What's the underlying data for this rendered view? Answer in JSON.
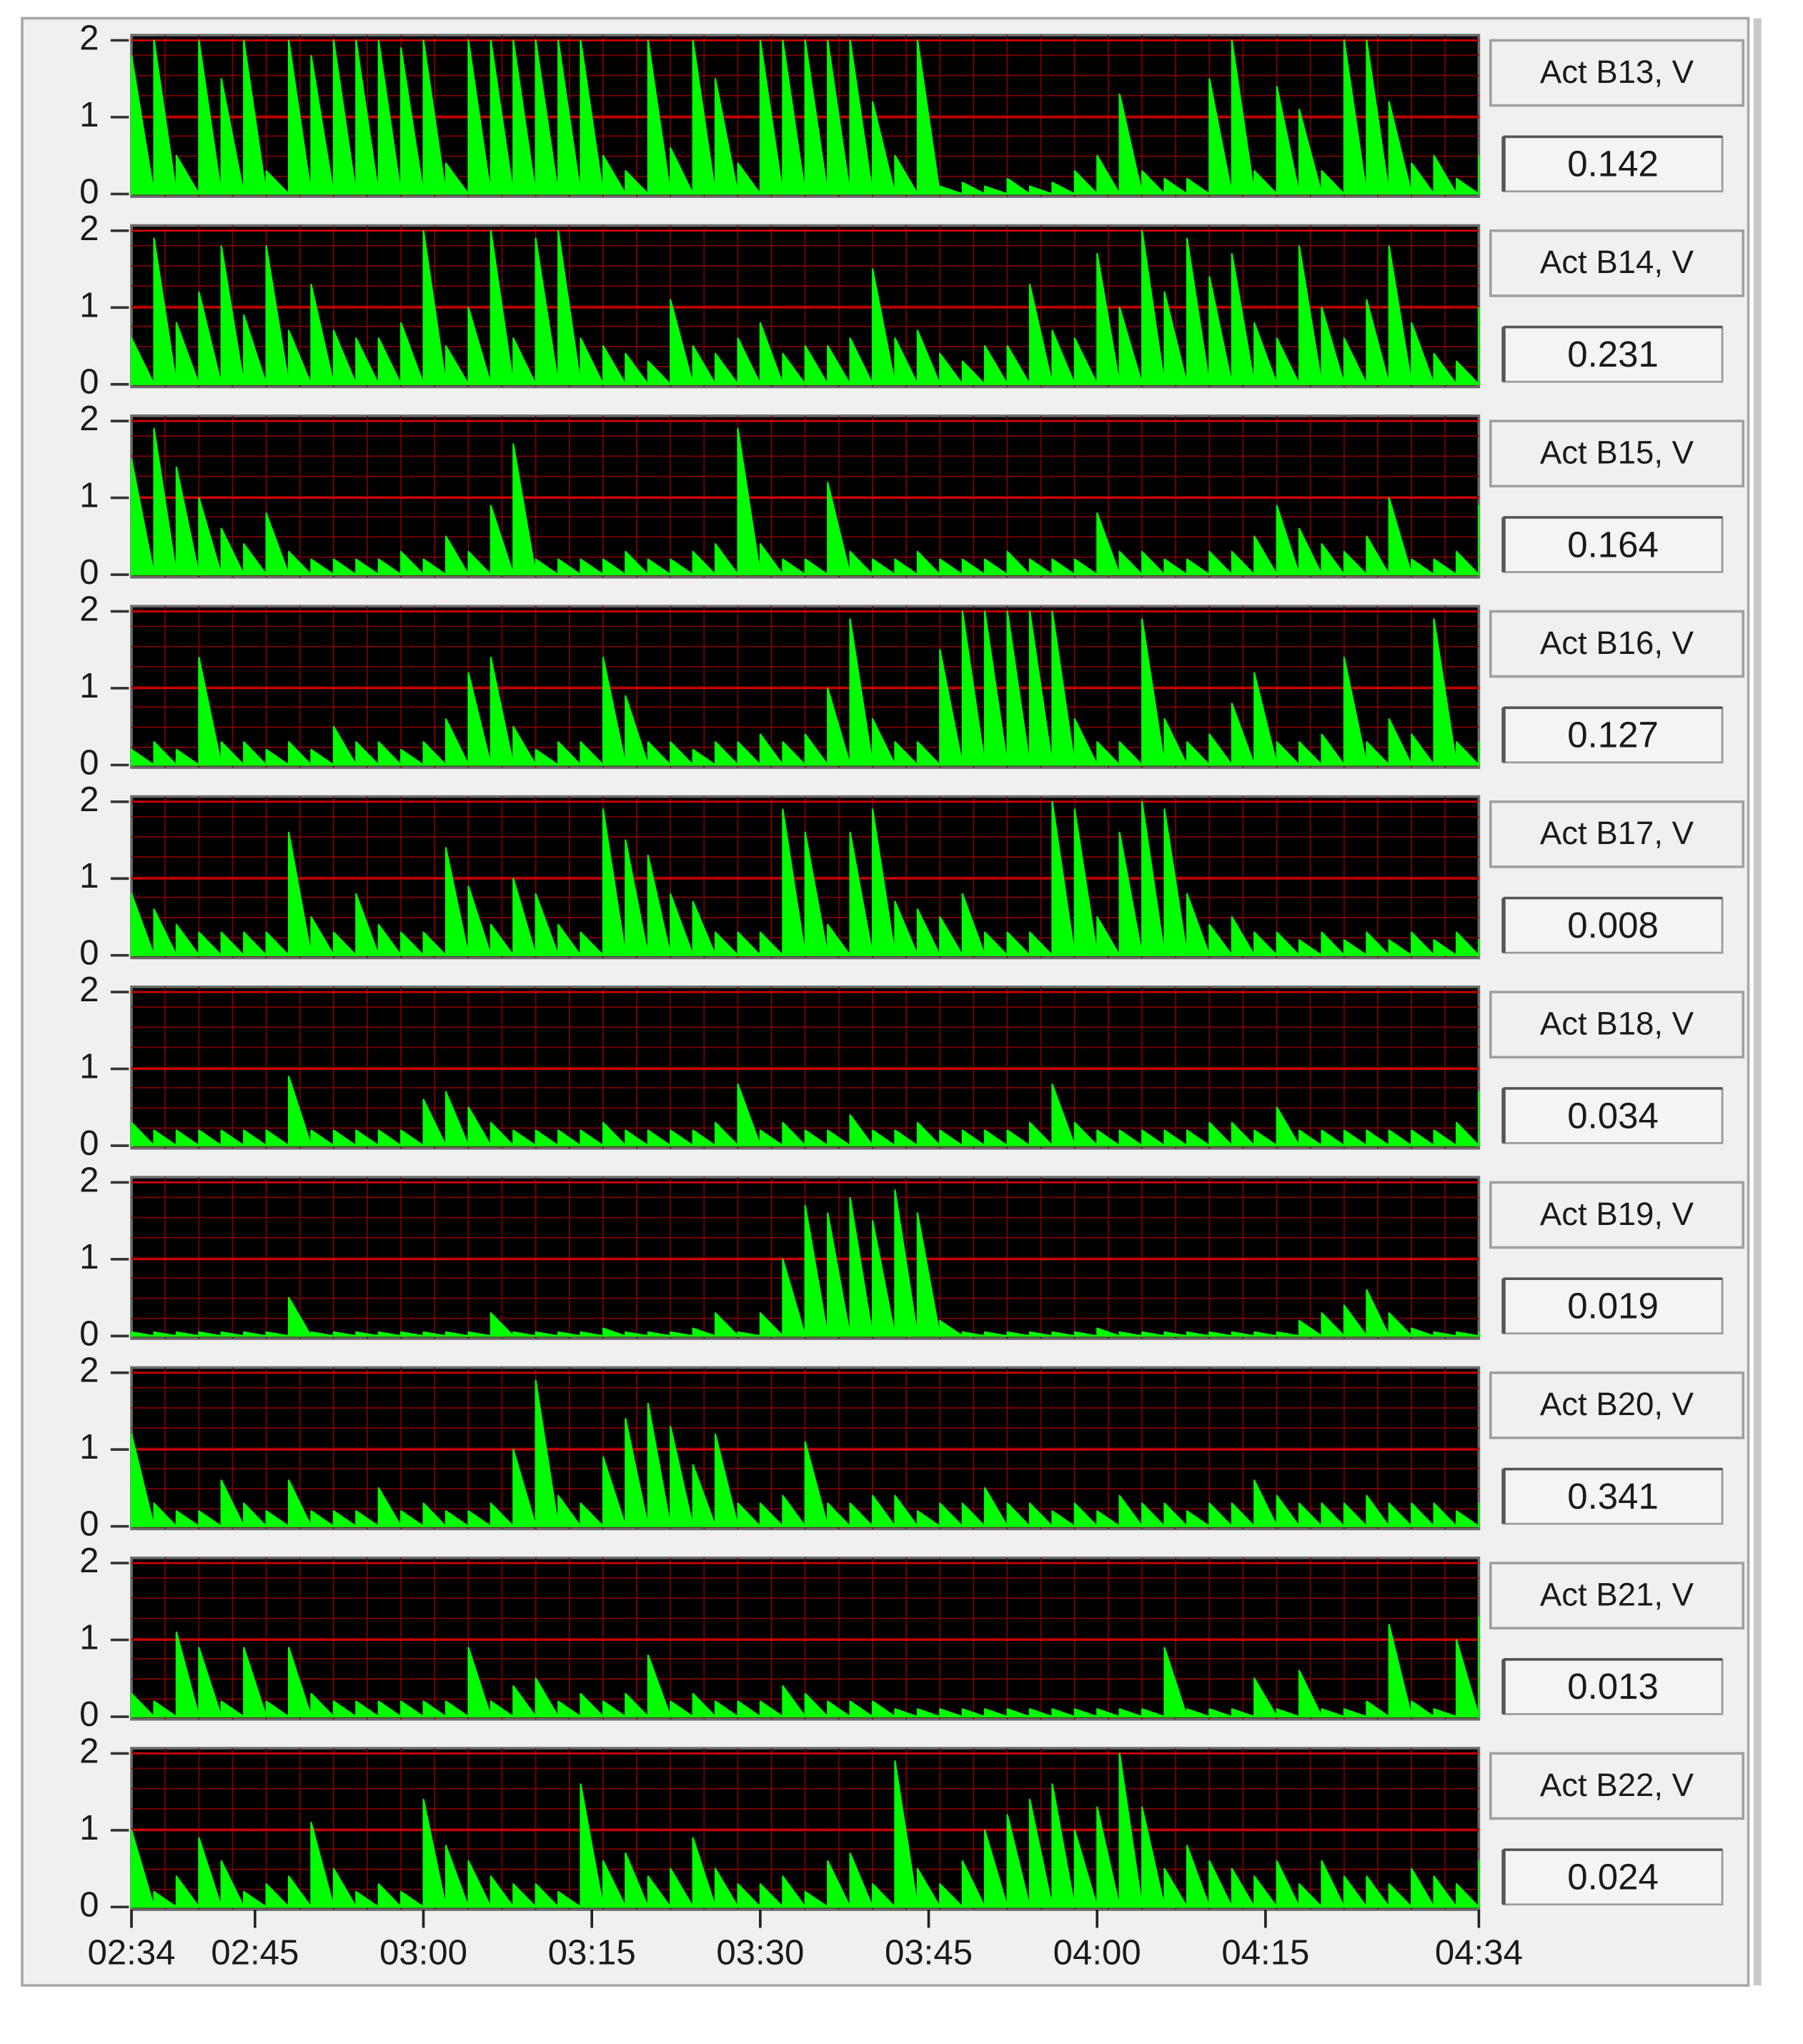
{
  "chart_data": {
    "type": "area",
    "subplots": true,
    "grid": true,
    "x": [
      "02:34",
      "02:36",
      "02:38",
      "02:40",
      "02:42",
      "02:44",
      "02:46",
      "02:48",
      "02:50",
      "02:52",
      "02:54",
      "02:56",
      "02:58",
      "03:00",
      "03:02",
      "03:04",
      "03:06",
      "03:08",
      "03:10",
      "03:12",
      "03:14",
      "03:16",
      "03:18",
      "03:20",
      "03:22",
      "03:24",
      "03:26",
      "03:28",
      "03:30",
      "03:32",
      "03:34",
      "03:36",
      "03:38",
      "03:40",
      "03:42",
      "03:44",
      "03:46",
      "03:48",
      "03:50",
      "03:52",
      "03:54",
      "03:56",
      "03:58",
      "04:00",
      "04:02",
      "04:04",
      "04:06",
      "04:08",
      "04:10",
      "04:12",
      "04:14",
      "04:16",
      "04:18",
      "04:20",
      "04:22",
      "04:24",
      "04:26",
      "04:28",
      "04:30",
      "04:32",
      "04:34"
    ],
    "xlim": [
      "02:34",
      "04:34"
    ],
    "xticks": [
      "02:34",
      "02:45",
      "03:00",
      "03:15",
      "03:30",
      "03:45",
      "04:00",
      "04:15",
      "04:34"
    ],
    "ylim": [
      0,
      2
    ],
    "yticks": [
      0,
      1,
      2
    ],
    "series": [
      {
        "name": "Act B13, V",
        "current_value": 0.142,
        "color": "#00ff00",
        "values": [
          1.8,
          2,
          0.5,
          2,
          1.5,
          2,
          0.3,
          2,
          1.8,
          2,
          2,
          2,
          1.9,
          2,
          0.4,
          2,
          2,
          2,
          2,
          2,
          2,
          0.5,
          0.3,
          2,
          0.6,
          2,
          1.5,
          0.4,
          2,
          2,
          2,
          2,
          2,
          1.2,
          0.5,
          2,
          0.1,
          0.15,
          0.1,
          0.2,
          0.1,
          0.15,
          0.3,
          0.5,
          1.3,
          0.3,
          0.2,
          0.2,
          1.5,
          2,
          0.3,
          1.4,
          1.1,
          0.3,
          2,
          2,
          1.2,
          0.4,
          0.5,
          0.2,
          0.5
        ]
      },
      {
        "name": "Act B14, V",
        "current_value": 0.231,
        "color": "#00ff00",
        "values": [
          0.6,
          1.9,
          0.8,
          1.2,
          1.8,
          0.9,
          1.8,
          0.7,
          1.3,
          0.7,
          0.6,
          0.6,
          0.8,
          2,
          0.5,
          1.0,
          2,
          0.6,
          1.9,
          2,
          0.6,
          0.5,
          0.4,
          0.3,
          1.1,
          0.5,
          0.4,
          0.6,
          0.8,
          0.4,
          0.5,
          0.5,
          0.6,
          1.5,
          0.6,
          0.7,
          0.4,
          0.3,
          0.5,
          0.5,
          1.3,
          0.7,
          0.6,
          1.7,
          1.0,
          2,
          1.2,
          1.9,
          1.4,
          1.7,
          0.8,
          0.6,
          1.8,
          1.0,
          0.6,
          1.1,
          1.8,
          0.8,
          0.4,
          0.3,
          1.0
        ]
      },
      {
        "name": "Act B15, V",
        "current_value": 0.164,
        "color": "#00ff00",
        "values": [
          1.5,
          1.9,
          1.4,
          1.0,
          0.6,
          0.4,
          0.8,
          0.3,
          0.2,
          0.2,
          0.2,
          0.2,
          0.3,
          0.2,
          0.5,
          0.3,
          0.9,
          1.7,
          0.2,
          0.2,
          0.2,
          0.2,
          0.3,
          0.2,
          0.2,
          0.3,
          0.4,
          1.9,
          0.4,
          0.2,
          0.2,
          1.2,
          0.3,
          0.2,
          0.2,
          0.3,
          0.2,
          0.2,
          0.2,
          0.3,
          0.2,
          0.2,
          0.2,
          0.8,
          0.3,
          0.3,
          0.2,
          0.2,
          0.3,
          0.3,
          0.5,
          0.9,
          0.6,
          0.4,
          0.3,
          0.5,
          1.0,
          0.2,
          0.2,
          0.3,
          0.9
        ]
      },
      {
        "name": "Act B16, V",
        "current_value": 0.127,
        "color": "#00ff00",
        "values": [
          0.2,
          0.3,
          0.2,
          1.4,
          0.3,
          0.3,
          0.2,
          0.3,
          0.2,
          0.5,
          0.3,
          0.3,
          0.2,
          0.3,
          0.6,
          1.2,
          1.4,
          0.5,
          0.2,
          0.3,
          0.3,
          1.4,
          0.9,
          0.3,
          0.3,
          0.2,
          0.3,
          0.3,
          0.4,
          0.3,
          0.4,
          1.0,
          1.9,
          0.6,
          0.3,
          0.3,
          1.5,
          2,
          2,
          2,
          2,
          2,
          0.6,
          0.3,
          0.3,
          1.9,
          0.6,
          0.3,
          0.4,
          0.8,
          1.2,
          0.3,
          0.3,
          0.4,
          1.4,
          0.3,
          0.6,
          0.4,
          1.9,
          0.3,
          0.3
        ]
      },
      {
        "name": "Act B17, V",
        "current_value": 0.008,
        "color": "#00ff00",
        "values": [
          0.8,
          0.6,
          0.4,
          0.3,
          0.3,
          0.3,
          0.3,
          1.6,
          0.5,
          0.3,
          0.8,
          0.4,
          0.3,
          0.3,
          1.4,
          0.9,
          0.4,
          1.0,
          0.8,
          0.4,
          0.3,
          1.9,
          1.5,
          1.3,
          0.8,
          0.7,
          0.3,
          0.3,
          0.3,
          1.9,
          1.6,
          0.4,
          1.6,
          1.9,
          0.7,
          0.6,
          0.5,
          0.8,
          0.3,
          0.3,
          0.3,
          2,
          1.9,
          0.5,
          1.6,
          2,
          1.9,
          0.8,
          0.4,
          0.5,
          0.3,
          0.3,
          0.2,
          0.3,
          0.2,
          0.3,
          0.2,
          0.3,
          0.2,
          0.3,
          0.2
        ]
      },
      {
        "name": "Act B18, V",
        "current_value": 0.034,
        "color": "#00ff00",
        "values": [
          0.3,
          0.2,
          0.2,
          0.2,
          0.2,
          0.2,
          0.2,
          0.9,
          0.2,
          0.2,
          0.2,
          0.2,
          0.2,
          0.6,
          0.7,
          0.5,
          0.3,
          0.2,
          0.2,
          0.2,
          0.2,
          0.3,
          0.2,
          0.2,
          0.2,
          0.2,
          0.3,
          0.8,
          0.2,
          0.3,
          0.2,
          0.2,
          0.4,
          0.2,
          0.2,
          0.3,
          0.2,
          0.2,
          0.2,
          0.2,
          0.3,
          0.8,
          0.3,
          0.2,
          0.2,
          0.2,
          0.2,
          0.2,
          0.3,
          0.3,
          0.2,
          0.5,
          0.2,
          0.2,
          0.2,
          0.2,
          0.2,
          0.2,
          0.2,
          0.3,
          0.7
        ]
      },
      {
        "name": "Act B19, V",
        "current_value": 0.019,
        "color": "#00ff00",
        "values": [
          0.05,
          0.05,
          0.05,
          0.05,
          0.05,
          0.05,
          0.05,
          0.5,
          0.05,
          0.05,
          0.05,
          0.05,
          0.05,
          0.05,
          0.05,
          0.05,
          0.3,
          0.05,
          0.05,
          0.05,
          0.05,
          0.1,
          0.05,
          0.05,
          0.05,
          0.1,
          0.3,
          0.05,
          0.3,
          1.0,
          1.7,
          1.6,
          1.8,
          1.5,
          1.9,
          1.6,
          0.2,
          0.05,
          0.05,
          0.05,
          0.05,
          0.05,
          0.05,
          0.1,
          0.05,
          0.05,
          0.05,
          0.05,
          0.05,
          0.05,
          0.05,
          0.05,
          0.2,
          0.3,
          0.4,
          0.6,
          0.3,
          0.1,
          0.05,
          0.05,
          0.05
        ]
      },
      {
        "name": "Act B20, V",
        "current_value": 0.341,
        "color": "#00ff00",
        "values": [
          1.2,
          0.3,
          0.2,
          0.2,
          0.6,
          0.3,
          0.2,
          0.6,
          0.2,
          0.2,
          0.2,
          0.5,
          0.2,
          0.3,
          0.2,
          0.2,
          0.3,
          1.0,
          1.9,
          0.4,
          0.3,
          0.9,
          1.4,
          1.6,
          1.3,
          0.8,
          1.2,
          0.3,
          0.3,
          0.4,
          1.1,
          0.3,
          0.3,
          0.4,
          0.4,
          0.2,
          0.3,
          0.3,
          0.5,
          0.3,
          0.3,
          0.2,
          0.3,
          0.2,
          0.4,
          0.3,
          0.3,
          0.2,
          0.3,
          0.3,
          0.6,
          0.4,
          0.3,
          0.3,
          0.3,
          0.4,
          0.3,
          0.3,
          0.3,
          0.2,
          0.3
        ]
      },
      {
        "name": "Act B21, V",
        "current_value": 0.013,
        "color": "#00ff00",
        "values": [
          0.3,
          0.2,
          1.1,
          0.9,
          0.2,
          0.9,
          0.2,
          0.9,
          0.3,
          0.2,
          0.2,
          0.2,
          0.2,
          0.2,
          0.2,
          0.9,
          0.2,
          0.4,
          0.5,
          0.2,
          0.3,
          0.2,
          0.3,
          0.8,
          0.2,
          0.3,
          0.2,
          0.2,
          0.2,
          0.4,
          0.3,
          0.2,
          0.2,
          0.2,
          0.1,
          0.1,
          0.1,
          0.1,
          0.1,
          0.1,
          0.1,
          0.1,
          0.1,
          0.1,
          0.1,
          0.1,
          0.9,
          0.1,
          0.1,
          0.1,
          0.5,
          0.1,
          0.6,
          0.1,
          0.1,
          0.2,
          1.2,
          0.2,
          0.1,
          1.0,
          1.3
        ]
      },
      {
        "name": "Act B22, V",
        "current_value": 0.024,
        "color": "#00ff00",
        "values": [
          1.0,
          0.2,
          0.4,
          0.9,
          0.6,
          0.2,
          0.3,
          0.4,
          1.1,
          0.5,
          0.2,
          0.3,
          0.2,
          1.4,
          0.8,
          0.6,
          0.4,
          0.3,
          0.3,
          0.2,
          1.6,
          0.6,
          0.7,
          0.4,
          0.5,
          0.9,
          0.5,
          0.3,
          0.3,
          0.4,
          0.2,
          0.6,
          0.7,
          0.3,
          1.9,
          0.5,
          0.3,
          0.6,
          1.0,
          1.2,
          1.4,
          1.6,
          1.0,
          1.3,
          2,
          1.3,
          0.5,
          0.8,
          0.6,
          0.5,
          0.4,
          0.6,
          0.3,
          0.6,
          0.4,
          0.4,
          0.3,
          0.5,
          0.4,
          0.3,
          0.6
        ]
      }
    ]
  }
}
